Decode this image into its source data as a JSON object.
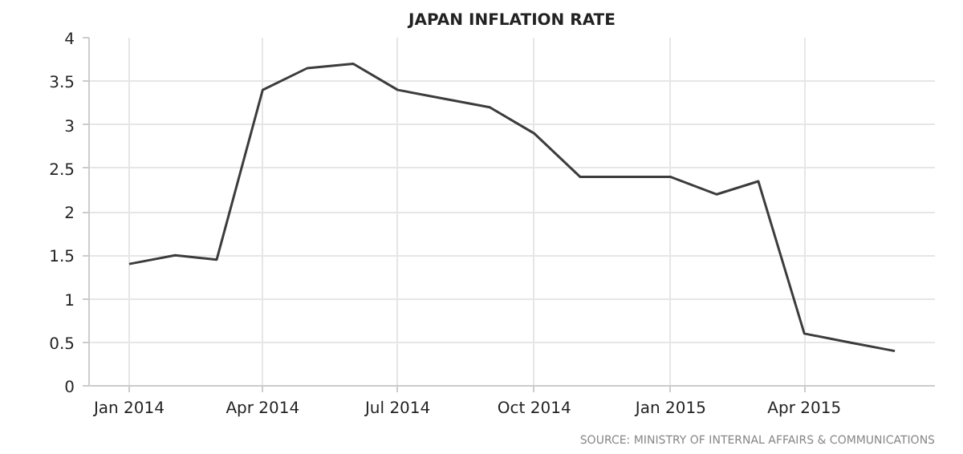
{
  "chart_data": {
    "type": "line",
    "title": "JAPAN INFLATION RATE",
    "x": [
      "2014-01",
      "2014-02",
      "2014-03",
      "2014-04",
      "2014-05",
      "2014-06",
      "2014-07",
      "2014-08",
      "2014-09",
      "2014-10",
      "2014-11",
      "2014-12",
      "2015-01",
      "2015-02",
      "2015-03",
      "2015-04",
      "2015-05",
      "2015-06"
    ],
    "series": [
      {
        "color": "#3c3c3c",
        "values": [
          1.4,
          1.5,
          1.45,
          3.4,
          3.65,
          3.7,
          3.4,
          3.3,
          3.2,
          2.9,
          2.4,
          2.4,
          2.4,
          2.2,
          2.35,
          0.6,
          0.5,
          0.4
        ]
      }
    ],
    "xlim": [
      "2013-12-05",
      "2015-06-28"
    ],
    "xticks": [
      {
        "value": "2014-01",
        "label": "Jan 2014"
      },
      {
        "value": "2014-04",
        "label": "Apr 2014"
      },
      {
        "value": "2014-07",
        "label": "Jul 2014"
      },
      {
        "value": "2014-10",
        "label": "Oct 2014"
      },
      {
        "value": "2015-01",
        "label": "Jan 2015"
      },
      {
        "value": "2015-04",
        "label": "Apr 2015"
      }
    ],
    "ylim": [
      0,
      4
    ],
    "yticks": [
      0,
      0.5,
      1,
      1.5,
      2,
      2.5,
      3,
      3.5,
      4
    ],
    "grid": true,
    "marker": "none",
    "line_style": "solid",
    "annotations": [
      "SOURCE: MINISTRY OF INTERNAL AFFAIRS & COMMUNICATIONS"
    ]
  }
}
